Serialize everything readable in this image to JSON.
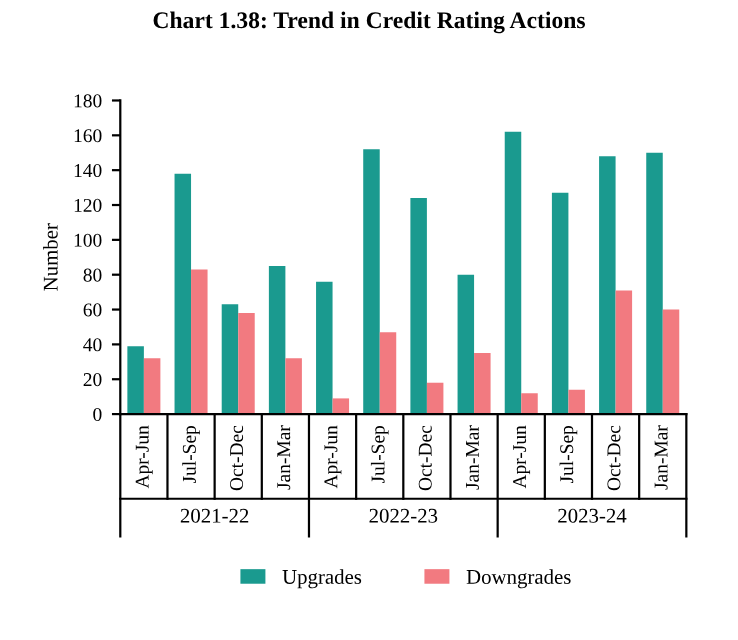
{
  "chart_data": {
    "type": "bar",
    "title": "Chart 1.38: Trend in Credit Rating Actions",
    "ylabel": "Number",
    "categories": [
      "Apr-Jun",
      "Jul-Sep",
      "Oct-Dec",
      "Jan-Mar",
      "Apr-Jun",
      "Jul-Sep",
      "Oct-Dec",
      "Jan-Mar",
      "Apr-Jun",
      "Jul-Sep",
      "Oct-Dec",
      "Jan-Mar"
    ],
    "annotations": [
      "2021-22",
      "2022-23",
      "2023-24"
    ],
    "series": [
      {
        "name": "Upgrades",
        "color": "#1a9a8f",
        "values": [
          39,
          138,
          63,
          85,
          76,
          152,
          124,
          80,
          162,
          127,
          148,
          150
        ]
      },
      {
        "name": "Downgrades",
        "color": "#f27a80",
        "values": [
          32,
          83,
          58,
          32,
          9,
          47,
          18,
          35,
          12,
          14,
          71,
          60
        ]
      }
    ],
    "ylim": [
      0,
      180
    ],
    "yticks": [
      0,
      20,
      40,
      60,
      80,
      100,
      120,
      140,
      160,
      180
    ],
    "grid": false,
    "legend": "bottom"
  }
}
